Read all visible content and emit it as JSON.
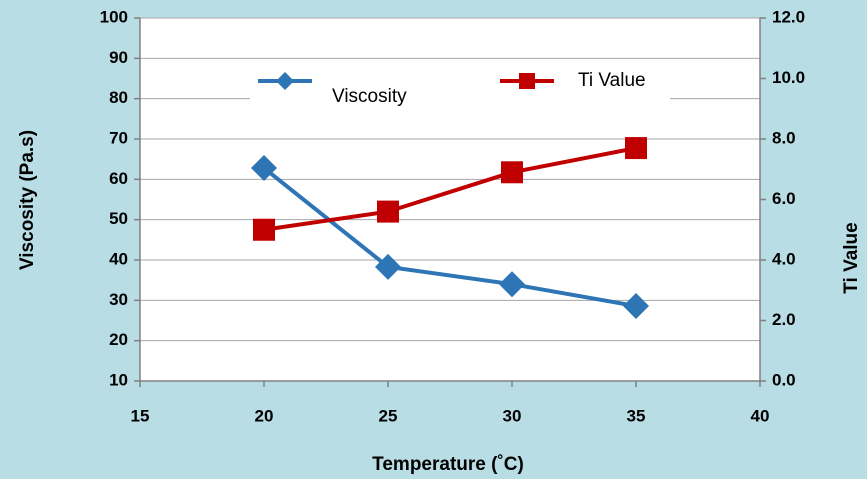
{
  "chart_data": {
    "type": "line",
    "x_label": "Temperature (˚C)",
    "y_label": "Viscosity (Pa.s)",
    "y2_label": "Ti Value",
    "x": [
      20,
      25,
      30,
      35
    ],
    "series": [
      {
        "name": "Viscosity",
        "color": "#2e75b6",
        "marker": "diamond",
        "values": [
          62.8,
          38.3,
          34,
          28.6
        ]
      },
      {
        "name": "Ti Value",
        "color": "#c00000",
        "marker": "square",
        "axis": "y2",
        "values": [
          5.0,
          5.6,
          6.9,
          7.7
        ]
      }
    ],
    "xlim": [
      15,
      40
    ],
    "xticks": [
      15,
      20,
      25,
      30,
      35,
      40
    ],
    "ylim": [
      10,
      100
    ],
    "yticks": [
      10,
      20,
      30,
      40,
      50,
      60,
      70,
      80,
      90,
      100
    ],
    "y2lim": [
      0,
      12
    ],
    "y2ticks": [
      {
        "value": 0,
        "label": "0.0"
      },
      {
        "value": 2,
        "label": "2.0"
      },
      {
        "value": 4,
        "label": "4.0"
      },
      {
        "value": 6,
        "label": "6.0"
      },
      {
        "value": 8,
        "label": "8.0"
      },
      {
        "value": 10,
        "label": "10.0"
      },
      {
        "value": 12,
        "label": "12.0"
      }
    ],
    "grid": true,
    "legend": "top"
  }
}
